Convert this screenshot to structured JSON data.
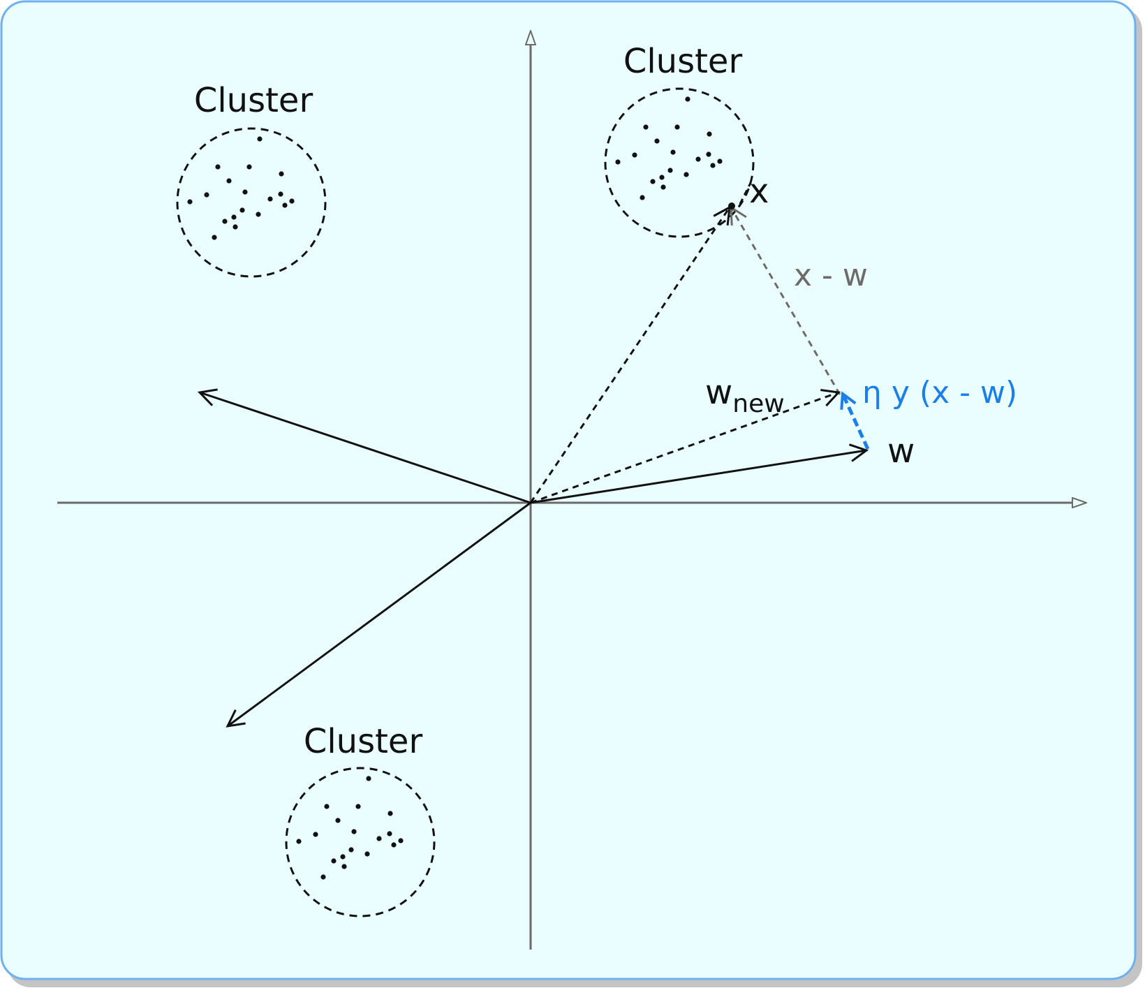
{
  "colors": {
    "panel_fill": "#eafeff",
    "panel_border": "#6cb1ee",
    "shadow": "#c4c4c4",
    "axis": "#6e6a67",
    "ink": "#111111",
    "difference_vector": "#6e6a67",
    "update_vector": "#1a7fe8"
  },
  "clusters": [
    {
      "label": "Cluster"
    },
    {
      "label": "Cluster"
    },
    {
      "label": "Cluster"
    }
  ],
  "labels": {
    "x": "x",
    "diff": "x - w",
    "w_new_base": "w",
    "w_new_sub": "new",
    "update": "η y (x - w)",
    "w": "w"
  }
}
